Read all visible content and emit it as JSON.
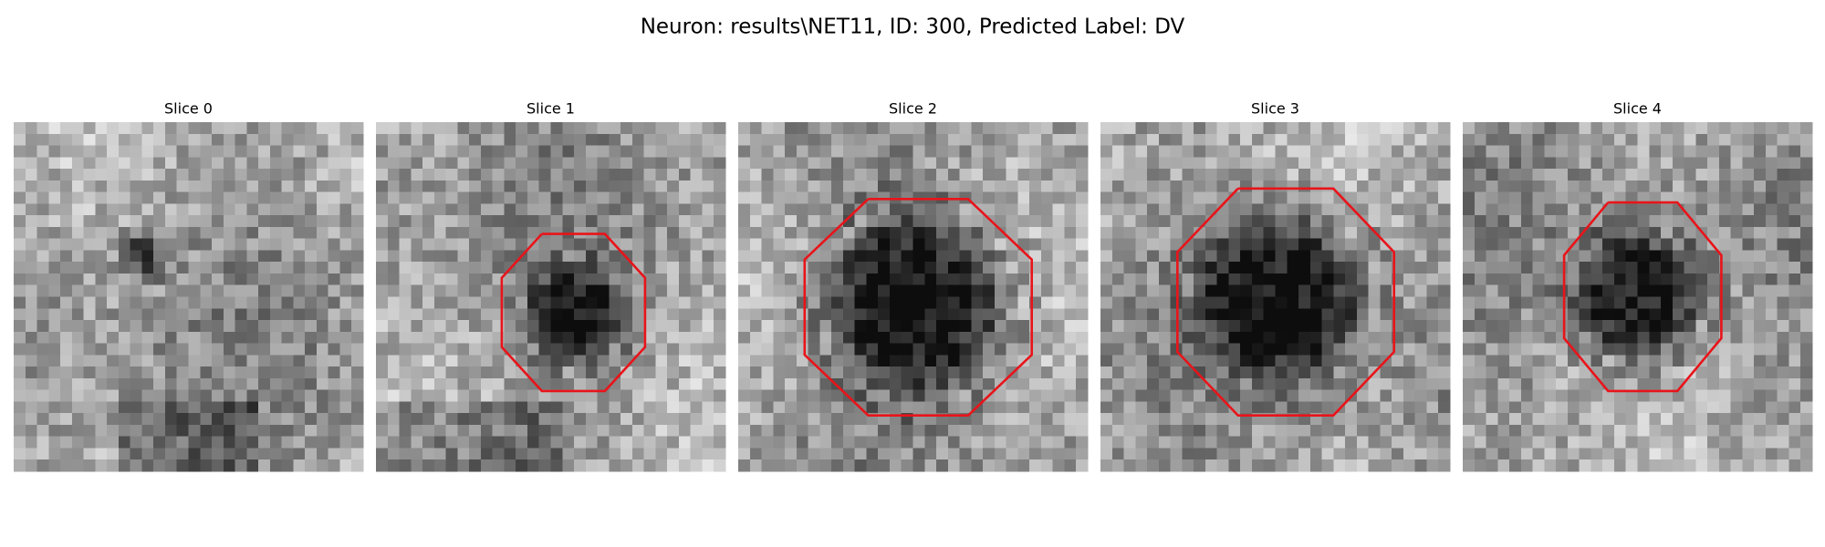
{
  "title": "Neuron: results\\NET11, ID: 300, Predicted Label: DV",
  "panels": [
    {
      "title": "Slice 0"
    },
    {
      "title": "Slice 1"
    },
    {
      "title": "Slice 2"
    },
    {
      "title": "Slice 3"
    },
    {
      "title": "Slice 4"
    }
  ]
}
